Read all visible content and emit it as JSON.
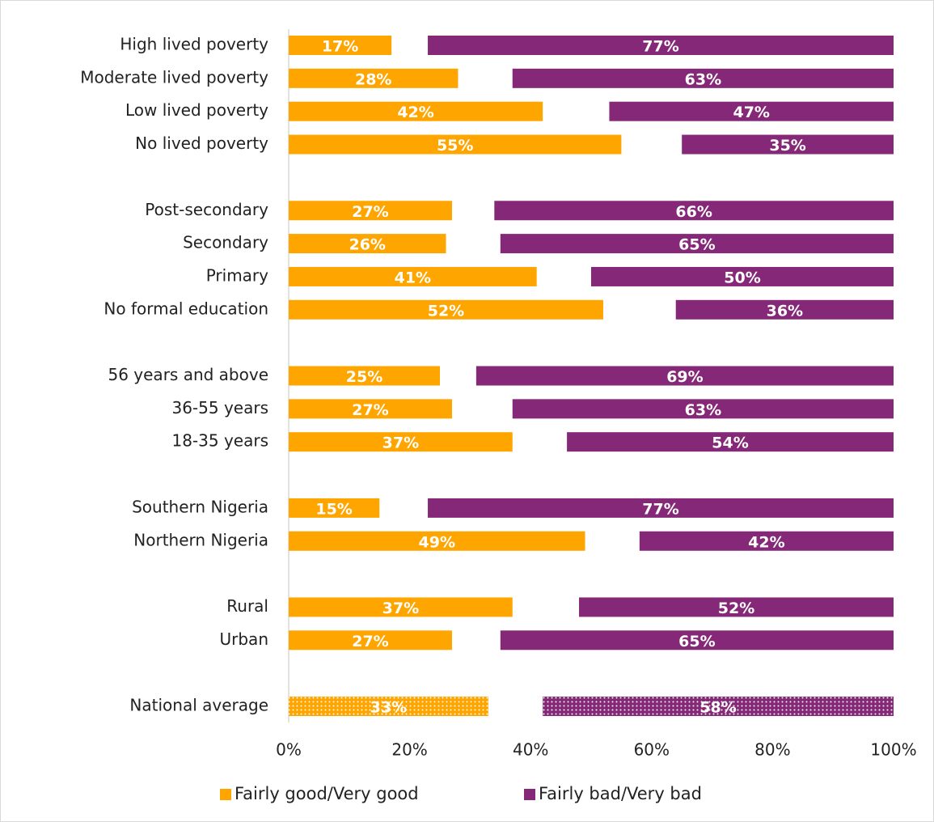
{
  "chart_data": {
    "type": "bar",
    "categories": [
      "High lived poverty",
      "Moderate lived poverty",
      "Low lived poverty",
      "No lived poverty",
      null,
      "Post-secondary",
      "Secondary",
      "Primary",
      "No formal education",
      null,
      "56 years and above",
      "36-55 years",
      "18-35 years",
      null,
      "Southern Nigeria",
      "Northern Nigeria",
      null,
      "Rural",
      "Urban",
      null,
      "National average"
    ],
    "series": [
      {
        "name": "Fairly good/Very good",
        "color": "#ffa500",
        "align": "left",
        "values": [
          17,
          28,
          42,
          55,
          null,
          27,
          26,
          41,
          52,
          null,
          25,
          27,
          37,
          null,
          15,
          49,
          null,
          37,
          27,
          null,
          33
        ],
        "value_labels": [
          "17%",
          "28%",
          "42%",
          "55%",
          null,
          "27%",
          "26%",
          "41%",
          "52%",
          null,
          "25%",
          "27%",
          "37%",
          null,
          "15%",
          "49%",
          null,
          "37%",
          "27%",
          null,
          "33%"
        ]
      },
      {
        "name": "Fairly bad/Very bad",
        "color": "#862878",
        "align": "right",
        "values": [
          77,
          63,
          47,
          35,
          null,
          66,
          65,
          50,
          36,
          null,
          69,
          63,
          54,
          null,
          77,
          42,
          null,
          52,
          65,
          null,
          58
        ],
        "value_labels": [
          "77%",
          "63%",
          "47%",
          "35%",
          null,
          "66%",
          "65%",
          "50%",
          "36%",
          null,
          "69%",
          "63%",
          "54%",
          null,
          "77%",
          "42%",
          null,
          "52%",
          "65%",
          null,
          "58%"
        ]
      }
    ],
    "xlim": [
      0,
      100
    ],
    "xticks": [
      {
        "value": 0,
        "label": "0%"
      },
      {
        "value": 20,
        "label": "20%"
      },
      {
        "value": 40,
        "label": "40%"
      },
      {
        "value": 60,
        "label": "60%"
      },
      {
        "value": 80,
        "label": "80%"
      },
      {
        "value": 100,
        "label": "100%"
      }
    ],
    "pattern_rows": [
      20
    ],
    "legend": "bottom"
  }
}
